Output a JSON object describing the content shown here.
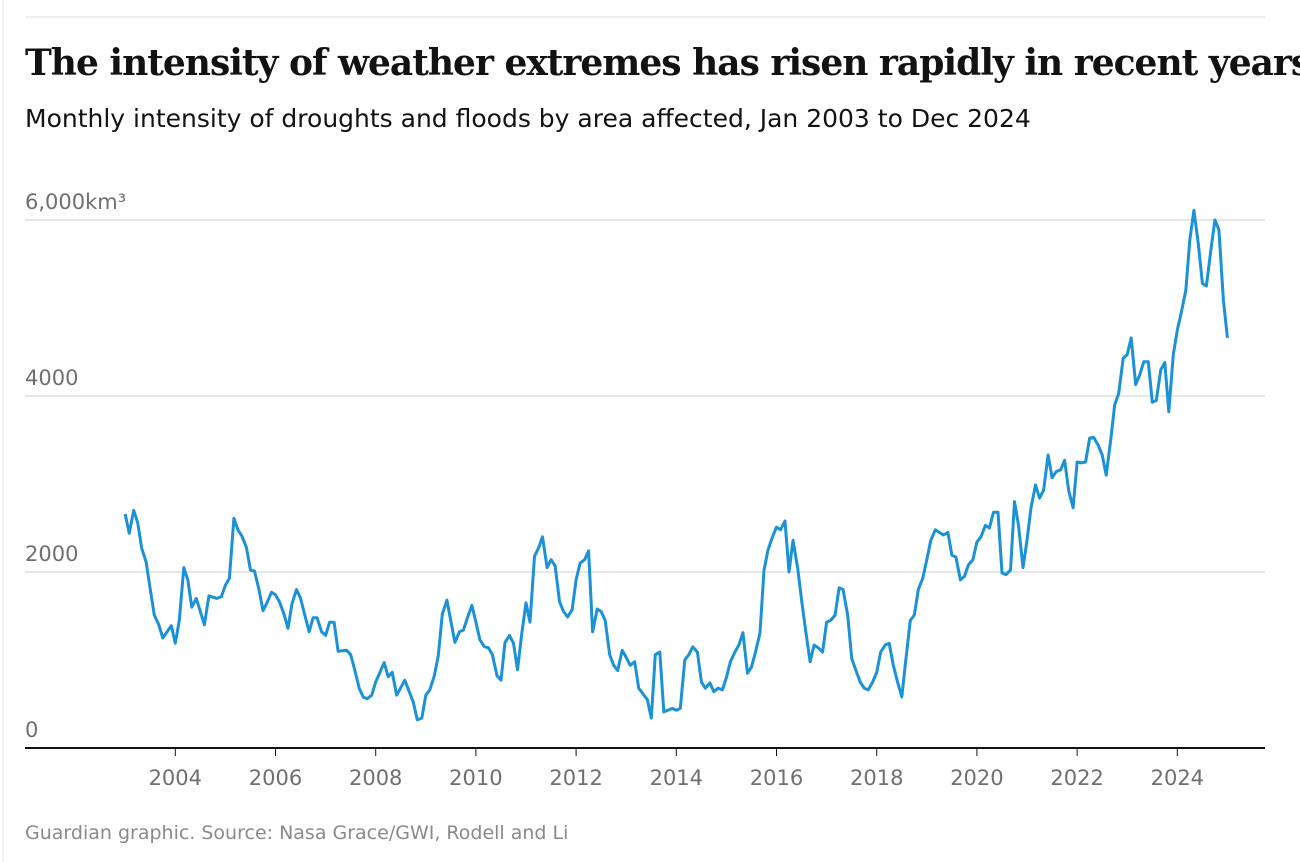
{
  "chart_data": {
    "type": "line",
    "title": "The intensity of weather extremes has risen rapidly in recent years",
    "subtitle": "Monthly intensity of droughts and floods by area affected, Jan 2003 to Dec 2024",
    "source": "Guardian graphic. Source: Nasa Grace/GWI, Rodell and Li",
    "color": "#1b91d6",
    "xlim": [
      2001,
      2025.75
    ],
    "xticks": [
      2004,
      2006,
      2008,
      2010,
      2012,
      2014,
      2016,
      2018,
      2020,
      2022,
      2024
    ],
    "ylim": [
      0,
      6000
    ],
    "yticks": [
      0,
      2000,
      4000,
      {
        "value": 6000,
        "label": "6,000km³"
      }
    ],
    "grid": true,
    "x": [
      2003.0,
      2003.08,
      2003.17,
      2003.25,
      2003.33,
      2003.42,
      2003.5,
      2003.58,
      2003.67,
      2003.75,
      2003.92,
      2004.0,
      2004.08,
      2004.17,
      2004.25,
      2004.33,
      2004.42,
      2004.58,
      2004.67,
      2004.83,
      2004.92,
      2005.0,
      2005.08,
      2005.17,
      2005.25,
      2005.33,
      2005.42,
      2005.5,
      2005.58,
      2005.67,
      2005.75,
      2005.83,
      2005.92,
      2006.0,
      2006.08,
      2006.17,
      2006.25,
      2006.33,
      2006.42,
      2006.5,
      2006.58,
      2006.67,
      2006.75,
      2006.83,
      2006.92,
      2007.0,
      2007.08,
      2007.17,
      2007.25,
      2007.42,
      2007.5,
      2007.58,
      2007.67,
      2007.75,
      2007.83,
      2007.92,
      2008.0,
      2008.17,
      2008.25,
      2008.33,
      2008.42,
      2008.58,
      2008.75,
      2008.83,
      2008.92,
      2009.0,
      2009.08,
      2009.17,
      2009.25,
      2009.33,
      2009.42,
      2009.5,
      2009.58,
      2009.67,
      2009.75,
      2009.83,
      2009.92,
      2010.0,
      2010.08,
      2010.17,
      2010.25,
      2010.33,
      2010.42,
      2010.5,
      2010.58,
      2010.67,
      2010.75,
      2010.83,
      2010.92,
      2011.0,
      2011.08,
      2011.17,
      2011.25,
      2011.33,
      2011.42,
      2011.5,
      2011.58,
      2011.67,
      2011.75,
      2011.83,
      2011.92,
      2012.0,
      2012.08,
      2012.17,
      2012.25,
      2012.33,
      2012.42,
      2012.5,
      2012.58,
      2012.67,
      2012.75,
      2012.83,
      2012.92,
      2013.0,
      2013.08,
      2013.17,
      2013.25,
      2013.33,
      2013.42,
      2013.5,
      2013.58,
      2013.67,
      2013.75,
      2013.83,
      2013.92,
      2014.0,
      2014.08,
      2014.17,
      2014.25,
      2014.33,
      2014.42,
      2014.5,
      2014.58,
      2014.67,
      2014.75,
      2014.83,
      2014.92,
      2015.0,
      2015.08,
      2015.17,
      2015.25,
      2015.33,
      2015.42,
      2015.5,
      2015.58,
      2015.67,
      2015.75,
      2015.83,
      2015.92,
      2016.0,
      2016.08,
      2016.17,
      2016.25,
      2016.33,
      2016.42,
      2016.5,
      2016.58,
      2016.67,
      2016.75,
      2016.83,
      2016.92,
      2017.0,
      2017.08,
      2017.17,
      2017.25,
      2017.33,
      2017.42,
      2017.5,
      2017.58,
      2017.67,
      2017.75,
      2017.83,
      2017.92,
      2018.0,
      2018.08,
      2018.17,
      2018.25,
      2018.33,
      2018.42,
      2018.5,
      2018.58,
      2018.67,
      2018.75,
      2018.83,
      2018.92,
      2019.0,
      2019.08,
      2019.17,
      2019.25,
      2019.33,
      2019.42,
      2019.5,
      2019.58,
      2019.67,
      2019.75,
      2019.83,
      2019.92,
      2020.0,
      2020.08,
      2020.17,
      2020.25,
      2020.33,
      2020.42,
      2020.5,
      2020.58,
      2020.67,
      2020.75,
      2020.83,
      2020.92,
      2021.0,
      2021.08,
      2021.17,
      2021.25,
      2021.33,
      2021.42,
      2021.5,
      2021.58,
      2021.67,
      2021.75,
      2021.83,
      2021.92,
      2022.0,
      2022.08,
      2022.17,
      2022.25,
      2022.33,
      2022.42,
      2022.5,
      2022.58,
      2022.67,
      2022.75,
      2022.83,
      2022.92,
      2023.0,
      2023.08,
      2023.17,
      2023.25,
      2023.33,
      2023.42,
      2023.5,
      2023.58,
      2023.67,
      2023.75,
      2023.83,
      2023.92,
      2024.0,
      2024.08,
      2024.17,
      2024.25,
      2024.33,
      2024.42,
      2024.5,
      2024.58,
      2024.67,
      2024.75,
      2024.83,
      2024.92,
      2025.0
    ],
    "values": [
      2660,
      2440,
      2700,
      2560,
      2270,
      2110,
      1800,
      1510,
      1400,
      1250,
      1390,
      1190,
      1450,
      2050,
      1910,
      1600,
      1700,
      1400,
      1730,
      1700,
      1720,
      1850,
      1930,
      2610,
      2480,
      2410,
      2280,
      2020,
      2010,
      1800,
      1560,
      1650,
      1770,
      1740,
      1660,
      1520,
      1360,
      1640,
      1800,
      1700,
      1520,
      1320,
      1480,
      1480,
      1320,
      1280,
      1430,
      1430,
      1100,
      1110,
      1060,
      890,
      680,
      580,
      560,
      600,
      750,
      970,
      810,
      860,
      600,
      770,
      520,
      320,
      340,
      600,
      660,
      820,
      1050,
      1520,
      1680,
      1440,
      1200,
      1320,
      1340,
      1480,
      1620,
      1430,
      1230,
      1150,
      1140,
      1060,
      820,
      770,
      1200,
      1280,
      1190,
      890,
      1320,
      1650,
      1430,
      2180,
      2270,
      2400,
      2050,
      2140,
      2070,
      1660,
      1550,
      1490,
      1570,
      1910,
      2100,
      2140,
      2240,
      1320,
      1580,
      1550,
      1450,
      1060,
      940,
      880,
      1110,
      1030,
      940,
      980,
      680,
      620,
      550,
      340,
      1060,
      1090,
      410,
      430,
      450,
      430,
      450,
      1000,
      1060,
      1150,
      1090,
      750,
      680,
      740,
      640,
      680,
      660,
      800,
      980,
      1090,
      1170,
      1310,
      850,
      920,
      1090,
      1310,
      2020,
      2250,
      2400,
      2510,
      2480,
      2580,
      2000,
      2360,
      2050,
      1680,
      1340,
      980,
      1170,
      1140,
      1090,
      1430,
      1450,
      1510,
      1820,
      1800,
      1510,
      1020,
      890,
      750,
      680,
      660,
      750,
      860,
      1090,
      1170,
      1190,
      940,
      740,
      580,
      1000,
      1450,
      1510,
      1800,
      1930,
      2140,
      2360,
      2480,
      2450,
      2420,
      2450,
      2190,
      2170,
      1910,
      1950,
      2080,
      2140,
      2340,
      2400,
      2530,
      2500,
      2680,
      2680,
      1990,
      1970,
      2020,
      2800,
      2530,
      2050,
      2360,
      2730,
      2990,
      2840,
      2930,
      3330,
      3070,
      3140,
      3160,
      3270,
      2930,
      2730,
      3250,
      3240,
      3250,
      3520,
      3530,
      3440,
      3330,
      3100,
      3500,
      3900,
      4030,
      4430,
      4470,
      4660,
      4130,
      4240,
      4390,
      4390,
      3930,
      3950,
      4300,
      4380,
      3820,
      4470,
      4750,
      4950,
      5200,
      5770,
      6110,
      5720,
      5280,
      5250,
      5660,
      6000,
      5890,
      5090,
      4660
    ]
  }
}
